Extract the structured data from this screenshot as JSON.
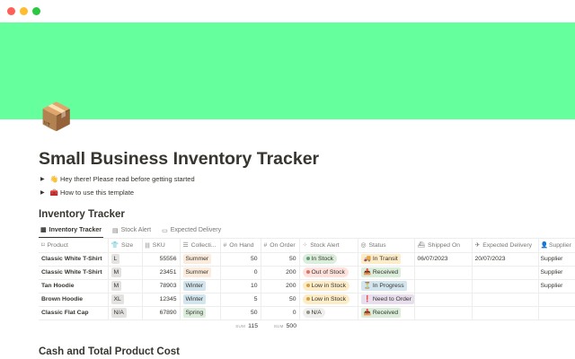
{
  "window": {
    "colors": {
      "close": "#ff5f57",
      "minimize": "#febc2e",
      "maximize": "#28c840"
    }
  },
  "cover": {
    "color": "#66ff9e"
  },
  "page": {
    "icon": "📦",
    "title": "Small Business Inventory Tracker"
  },
  "toggles": [
    {
      "emoji": "👋",
      "label": "Hey there! Please read before getting started"
    },
    {
      "emoji": "🧰",
      "label": "How to use this template"
    }
  ],
  "section": {
    "title": "Inventory Tracker"
  },
  "tabs": [
    {
      "icon": "▦",
      "label": "Inventory Tracker"
    },
    {
      "icon": "▤",
      "label": "Stock Alert"
    },
    {
      "icon": "▭",
      "label": "Expected Delivery"
    }
  ],
  "columns": [
    {
      "icon": "⌑",
      "label": "Product"
    },
    {
      "icon": "👕",
      "label": "Size"
    },
    {
      "icon": "|||",
      "label": "SKU"
    },
    {
      "icon": "☰",
      "label": "Collecti..."
    },
    {
      "icon": "#",
      "label": "On Hand"
    },
    {
      "icon": "#",
      "label": "On Order"
    },
    {
      "icon": "⁘",
      "label": "Stock Alert"
    },
    {
      "icon": "◎",
      "label": "Status"
    },
    {
      "icon": "⛴",
      "label": "Shipped On"
    },
    {
      "icon": "✈",
      "label": "Expected Delivery"
    },
    {
      "icon": "👤",
      "label": "Supplier"
    }
  ],
  "rows": [
    {
      "product": "Classic White T-Shirt",
      "size": "L",
      "sku": "55556",
      "collection": "Summer",
      "on_hand": "50",
      "on_order": "50",
      "alert": "In Stock",
      "status": "🚚 In Transit",
      "shipped": "06/07/2023",
      "expected": "20/07/2023",
      "supplier": "Supplier"
    },
    {
      "product": "Classic White T-Shirt",
      "size": "M",
      "sku": "23451",
      "collection": "Summer",
      "on_hand": "0",
      "on_order": "200",
      "alert": "Out of Stock",
      "status": "📥 Received",
      "shipped": "",
      "expected": "",
      "supplier": "Supplier"
    },
    {
      "product": "Tan Hoodie",
      "size": "M",
      "sku": "78903",
      "collection": "Winter",
      "on_hand": "10",
      "on_order": "200",
      "alert": "Low in Stock",
      "status": "⏳ In Progress",
      "shipped": "",
      "expected": "",
      "supplier": "Supplier"
    },
    {
      "product": "Brown Hoodie",
      "size": "XL",
      "sku": "12345",
      "collection": "Winter",
      "on_hand": "5",
      "on_order": "50",
      "alert": "Low in Stock",
      "status": "❗ Need to Order",
      "shipped": "",
      "expected": "",
      "supplier": ""
    },
    {
      "product": "Classic Flat Cap",
      "size": "N/A",
      "sku": "67890",
      "collection": "Spring",
      "on_hand": "50",
      "on_order": "0",
      "alert": "N/A",
      "status": "📥 Received",
      "shipped": "",
      "expected": "",
      "supplier": ""
    }
  ],
  "sums": {
    "label": "SUM",
    "on_hand": "115",
    "on_order": "500"
  },
  "next_section": {
    "title": "Cash and Total Product Cost"
  }
}
